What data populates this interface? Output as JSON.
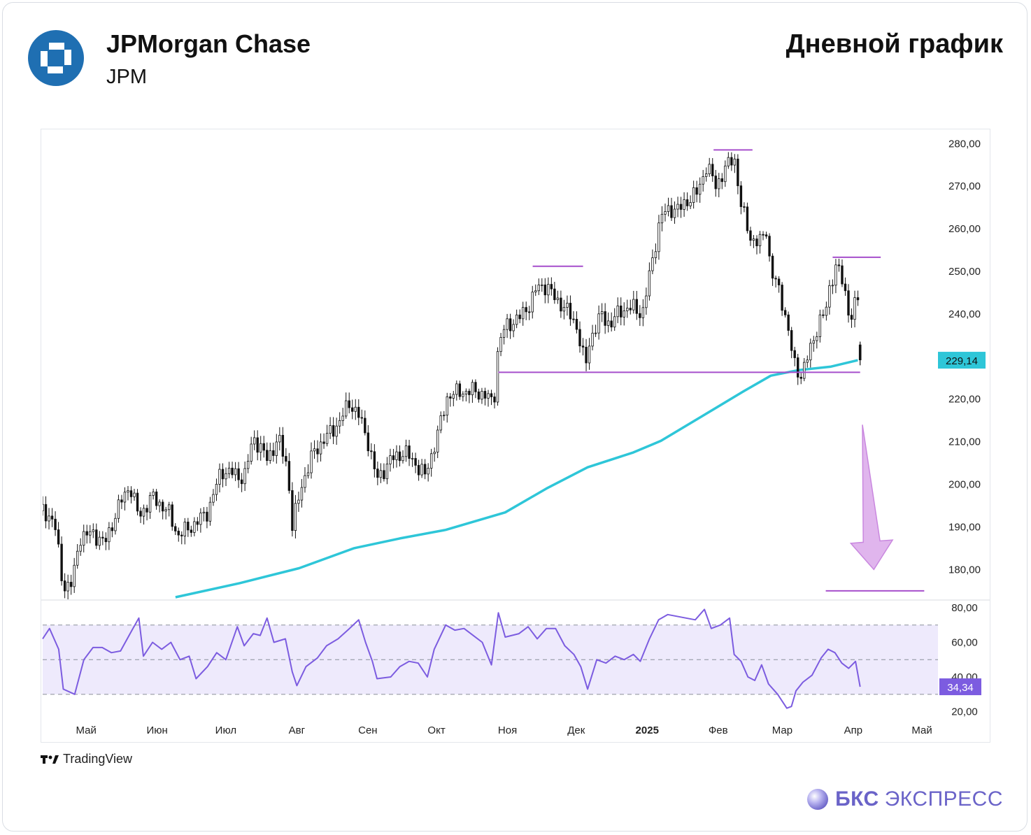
{
  "header": {
    "company": "JPMorgan Chase",
    "ticker": "JPM",
    "chart_title": "Дневной график"
  },
  "branding": {
    "source": "TradingView",
    "publisher_bold": "БКС",
    "publisher_rest": "ЭКСПРЕСС"
  },
  "colors": {
    "candle": "#111111",
    "ma_line": "#2ec6d8",
    "levels": "#a64fcc",
    "rsi_line": "#7c5ce0",
    "rsi_band": "#eeeafc",
    "arrow": "#d8a3e8",
    "logo": "#1f6fb2"
  },
  "chart_data": [
    {
      "type": "candlestick",
      "panel": "price",
      "y_ticks": [
        "280,00",
        "270,00",
        "260,00",
        "250,00",
        "240,00",
        "230,00",
        "220,00",
        "210,00",
        "200,00",
        "190,00",
        "180,00"
      ],
      "ylim": [
        173,
        283
      ],
      "x_ticks": [
        "Май",
        "Июн",
        "Июл",
        "Авг",
        "Сен",
        "Окт",
        "Ноя",
        "Дек",
        "2025",
        "Фев",
        "Мар",
        "Апр",
        "Май"
      ],
      "x_tick_days": [
        13,
        44,
        74,
        105,
        136,
        166,
        197,
        227,
        258,
        289,
        317,
        348,
        378
      ],
      "xlim": [
        -6,
        385
      ],
      "last_price_label": "229,14",
      "last_price": 229.14,
      "closes": [
        {
          "d": -6,
          "c": 193.8
        },
        {
          "d": -1,
          "c": 191.5
        },
        {
          "d": 3,
          "c": 175.8
        },
        {
          "d": 7,
          "c": 176.6
        },
        {
          "d": 10,
          "c": 187.5
        },
        {
          "d": 16,
          "c": 188.6
        },
        {
          "d": 21,
          "c": 186.0
        },
        {
          "d": 28,
          "c": 195.8
        },
        {
          "d": 32,
          "c": 199.8
        },
        {
          "d": 36,
          "c": 192.4
        },
        {
          "d": 42,
          "c": 197.1
        },
        {
          "d": 49,
          "c": 193.4
        },
        {
          "d": 53,
          "c": 188.0
        },
        {
          "d": 60,
          "c": 190.5
        },
        {
          "d": 66,
          "c": 193.5
        },
        {
          "d": 72,
          "c": 203.2
        },
        {
          "d": 77,
          "c": 202.6
        },
        {
          "d": 82,
          "c": 201.4
        },
        {
          "d": 86,
          "c": 211.2
        },
        {
          "d": 92,
          "c": 206.0
        },
        {
          "d": 97,
          "c": 210.6
        },
        {
          "d": 101,
          "c": 203.8
        },
        {
          "d": 103,
          "c": 190.0
        },
        {
          "d": 107,
          "c": 199.6
        },
        {
          "d": 112,
          "c": 207.2
        },
        {
          "d": 117,
          "c": 210.6
        },
        {
          "d": 123,
          "c": 214.2
        },
        {
          "d": 128,
          "c": 219.2
        },
        {
          "d": 132,
          "c": 216.2
        },
        {
          "d": 136,
          "c": 210.2
        },
        {
          "d": 140,
          "c": 201.0
        },
        {
          "d": 146,
          "c": 205.8
        },
        {
          "d": 152,
          "c": 207.6
        },
        {
          "d": 156,
          "c": 205.4
        },
        {
          "d": 161,
          "c": 202.0
        },
        {
          "d": 166,
          "c": 210.8
        },
        {
          "d": 171,
          "c": 221.0
        },
        {
          "d": 176,
          "c": 221.6
        },
        {
          "d": 182,
          "c": 222.0
        },
        {
          "d": 187,
          "c": 221.0
        },
        {
          "d": 191,
          "c": 219.0
        },
        {
          "d": 193,
          "c": 232.8
        },
        {
          "d": 196,
          "c": 237.0
        },
        {
          "d": 202,
          "c": 239.0
        },
        {
          "d": 207,
          "c": 242.5
        },
        {
          "d": 210,
          "c": 246.4
        },
        {
          "d": 214,
          "c": 246.6
        },
        {
          "d": 218,
          "c": 243.5
        },
        {
          "d": 222,
          "c": 241.5
        },
        {
          "d": 227,
          "c": 237.6
        },
        {
          "d": 231,
          "c": 227.5
        },
        {
          "d": 233,
          "c": 234.0
        },
        {
          "d": 238,
          "c": 239.8
        },
        {
          "d": 242,
          "c": 237.4
        },
        {
          "d": 246,
          "c": 240.8
        },
        {
          "d": 252,
          "c": 241.5
        },
        {
          "d": 256,
          "c": 240.0
        },
        {
          "d": 260,
          "c": 252.0
        },
        {
          "d": 264,
          "c": 263.0
        },
        {
          "d": 268,
          "c": 264.7
        },
        {
          "d": 272,
          "c": 264.5
        },
        {
          "d": 276,
          "c": 266.9
        },
        {
          "d": 280,
          "c": 268.5
        },
        {
          "d": 284,
          "c": 275.0
        },
        {
          "d": 288,
          "c": 270.0
        },
        {
          "d": 292,
          "c": 274.0
        },
        {
          "d": 296,
          "c": 277.0
        },
        {
          "d": 299,
          "c": 265.5
        },
        {
          "d": 303,
          "c": 258.0
        },
        {
          "d": 307,
          "c": 256.5
        },
        {
          "d": 310,
          "c": 260.0
        },
        {
          "d": 312,
          "c": 250.0
        },
        {
          "d": 316,
          "c": 245.0
        },
        {
          "d": 319,
          "c": 238.0
        },
        {
          "d": 322,
          "c": 228.5
        },
        {
          "d": 325,
          "c": 225.5
        },
        {
          "d": 327,
          "c": 228.0
        },
        {
          "d": 330,
          "c": 233.0
        },
        {
          "d": 333,
          "c": 238.0
        },
        {
          "d": 336,
          "c": 240.5
        },
        {
          "d": 338,
          "c": 247.5
        },
        {
          "d": 341,
          "c": 251.6
        },
        {
          "d": 344,
          "c": 246.0
        },
        {
          "d": 347,
          "c": 238.5
        },
        {
          "d": 350,
          "c": 244.6
        },
        {
          "d": 351,
          "c": 229.14
        }
      ],
      "ma_line": [
        {
          "d": 52,
          "v": 173.5
        },
        {
          "d": 80,
          "v": 176.8
        },
        {
          "d": 106,
          "v": 180.3
        },
        {
          "d": 130,
          "v": 185.0
        },
        {
          "d": 150,
          "v": 187.3
        },
        {
          "d": 170,
          "v": 189.3
        },
        {
          "d": 196,
          "v": 193.4
        },
        {
          "d": 214,
          "v": 199.0
        },
        {
          "d": 232,
          "v": 204.0
        },
        {
          "d": 252,
          "v": 207.5
        },
        {
          "d": 264,
          "v": 210.2
        },
        {
          "d": 282,
          "v": 216.0
        },
        {
          "d": 300,
          "v": 221.8
        },
        {
          "d": 312,
          "v": 225.5
        },
        {
          "d": 324,
          "v": 226.8
        },
        {
          "d": 338,
          "v": 227.6
        },
        {
          "d": 350,
          "v": 229.14
        }
      ],
      "levels": [
        {
          "name": "left-shoulder",
          "value": 251.2,
          "d_from": 208,
          "d_to": 230
        },
        {
          "name": "head",
          "value": 278.5,
          "d_from": 287,
          "d_to": 304
        },
        {
          "name": "right-shoulder",
          "value": 253.3,
          "d_from": 339,
          "d_to": 360
        },
        {
          "name": "neckline",
          "value": 226.3,
          "d_from": 193,
          "d_to": 351
        },
        {
          "name": "target",
          "value": 175.0,
          "d_from": 336,
          "d_to": 379
        }
      ],
      "arrow": {
        "from_d": 352,
        "from_v": 214,
        "to_d": 357,
        "to_v": 180
      }
    },
    {
      "type": "line",
      "panel": "rsi",
      "y_ticks": [
        "80,00",
        "60,00",
        "40,00",
        "20,00"
      ],
      "ylim": [
        15,
        84
      ],
      "bands": [
        30,
        50,
        70
      ],
      "last_value_label": "34,34",
      "last_value": 34.34,
      "points": [
        {
          "d": -6,
          "v": 62
        },
        {
          "d": -3,
          "v": 68
        },
        {
          "d": 1,
          "v": 56
        },
        {
          "d": 3,
          "v": 33
        },
        {
          "d": 8,
          "v": 30
        },
        {
          "d": 12,
          "v": 50
        },
        {
          "d": 16,
          "v": 57
        },
        {
          "d": 20,
          "v": 57
        },
        {
          "d": 24,
          "v": 54
        },
        {
          "d": 28,
          "v": 55
        },
        {
          "d": 33,
          "v": 67
        },
        {
          "d": 36,
          "v": 74
        },
        {
          "d": 38,
          "v": 52
        },
        {
          "d": 42,
          "v": 60
        },
        {
          "d": 46,
          "v": 56
        },
        {
          "d": 50,
          "v": 60
        },
        {
          "d": 54,
          "v": 50
        },
        {
          "d": 58,
          "v": 52
        },
        {
          "d": 61,
          "v": 39
        },
        {
          "d": 66,
          "v": 46
        },
        {
          "d": 70,
          "v": 54
        },
        {
          "d": 74,
          "v": 50
        },
        {
          "d": 79,
          "v": 69
        },
        {
          "d": 82,
          "v": 58
        },
        {
          "d": 86,
          "v": 65
        },
        {
          "d": 89,
          "v": 64
        },
        {
          "d": 92,
          "v": 74
        },
        {
          "d": 95,
          "v": 60
        },
        {
          "d": 100,
          "v": 62
        },
        {
          "d": 103,
          "v": 43
        },
        {
          "d": 105,
          "v": 35
        },
        {
          "d": 109,
          "v": 46
        },
        {
          "d": 114,
          "v": 51
        },
        {
          "d": 118,
          "v": 58
        },
        {
          "d": 123,
          "v": 62
        },
        {
          "d": 128,
          "v": 68
        },
        {
          "d": 132,
          "v": 73
        },
        {
          "d": 135,
          "v": 60
        },
        {
          "d": 138,
          "v": 49
        },
        {
          "d": 140,
          "v": 39
        },
        {
          "d": 146,
          "v": 40
        },
        {
          "d": 150,
          "v": 46
        },
        {
          "d": 154,
          "v": 49
        },
        {
          "d": 158,
          "v": 48
        },
        {
          "d": 162,
          "v": 40
        },
        {
          "d": 165,
          "v": 56
        },
        {
          "d": 170,
          "v": 70
        },
        {
          "d": 174,
          "v": 67
        },
        {
          "d": 178,
          "v": 68
        },
        {
          "d": 182,
          "v": 64
        },
        {
          "d": 186,
          "v": 60
        },
        {
          "d": 190,
          "v": 47
        },
        {
          "d": 193,
          "v": 77
        },
        {
          "d": 196,
          "v": 63
        },
        {
          "d": 202,
          "v": 65
        },
        {
          "d": 206,
          "v": 69
        },
        {
          "d": 210,
          "v": 62
        },
        {
          "d": 214,
          "v": 68
        },
        {
          "d": 218,
          "v": 68
        },
        {
          "d": 222,
          "v": 58
        },
        {
          "d": 226,
          "v": 53
        },
        {
          "d": 229,
          "v": 46
        },
        {
          "d": 232,
          "v": 33
        },
        {
          "d": 236,
          "v": 50
        },
        {
          "d": 240,
          "v": 48
        },
        {
          "d": 244,
          "v": 52
        },
        {
          "d": 248,
          "v": 50
        },
        {
          "d": 252,
          "v": 53
        },
        {
          "d": 255,
          "v": 49
        },
        {
          "d": 259,
          "v": 62
        },
        {
          "d": 263,
          "v": 73
        },
        {
          "d": 267,
          "v": 76
        },
        {
          "d": 271,
          "v": 75
        },
        {
          "d": 275,
          "v": 74
        },
        {
          "d": 279,
          "v": 73
        },
        {
          "d": 283,
          "v": 79
        },
        {
          "d": 286,
          "v": 68
        },
        {
          "d": 290,
          "v": 70
        },
        {
          "d": 294,
          "v": 74
        },
        {
          "d": 296,
          "v": 53
        },
        {
          "d": 299,
          "v": 49
        },
        {
          "d": 302,
          "v": 40
        },
        {
          "d": 305,
          "v": 38
        },
        {
          "d": 308,
          "v": 47
        },
        {
          "d": 311,
          "v": 36
        },
        {
          "d": 315,
          "v": 30
        },
        {
          "d": 319,
          "v": 22
        },
        {
          "d": 321,
          "v": 23
        },
        {
          "d": 323,
          "v": 32
        },
        {
          "d": 326,
          "v": 37
        },
        {
          "d": 330,
          "v": 41
        },
        {
          "d": 334,
          "v": 51
        },
        {
          "d": 337,
          "v": 56
        },
        {
          "d": 340,
          "v": 54
        },
        {
          "d": 343,
          "v": 48
        },
        {
          "d": 346,
          "v": 45
        },
        {
          "d": 349,
          "v": 49
        },
        {
          "d": 351,
          "v": 34.34
        }
      ]
    }
  ]
}
